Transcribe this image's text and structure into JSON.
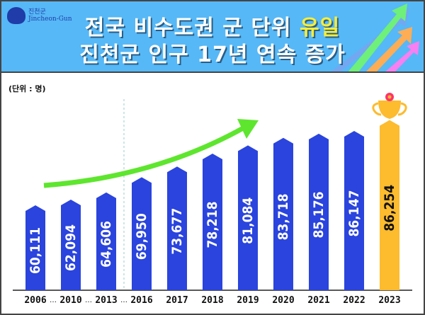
{
  "banner": {
    "title_line1_prefix": "전국 비수도권 군 단위 ",
    "title_line1_highlight": "유일",
    "title_line2": "진천군 인구 17년 연속 증가",
    "logo_name": "진천군",
    "logo_roman": "Jincheon-Gun"
  },
  "colors": {
    "bar": "#2a44dd",
    "highlight_bar": "#fdbb2e",
    "banner": "#56b8f6",
    "arrow": "#5ee62e"
  },
  "chart_data": {
    "type": "bar",
    "unit_label": "(단위 : 명)",
    "categories": [
      "2006",
      "2010",
      "2013",
      "2016",
      "2017",
      "2018",
      "2019",
      "2020",
      "2021",
      "2022",
      "2023"
    ],
    "values": [
      60111,
      62094,
      64606,
      69950,
      73677,
      78218,
      81084,
      83718,
      85176,
      86147,
      86254
    ],
    "value_labels": [
      "60,111",
      "62,094",
      "64,606",
      "69,950",
      "73,677",
      "78,218",
      "81,084",
      "83,718",
      "85,176",
      "86,147",
      "86,254"
    ],
    "separators": [
      "…",
      "…",
      "…"
    ],
    "highlight": "2023",
    "highlight_icon": "trophy-icon",
    "trend_icon": "trend-arrow-icon",
    "grid": false
  }
}
